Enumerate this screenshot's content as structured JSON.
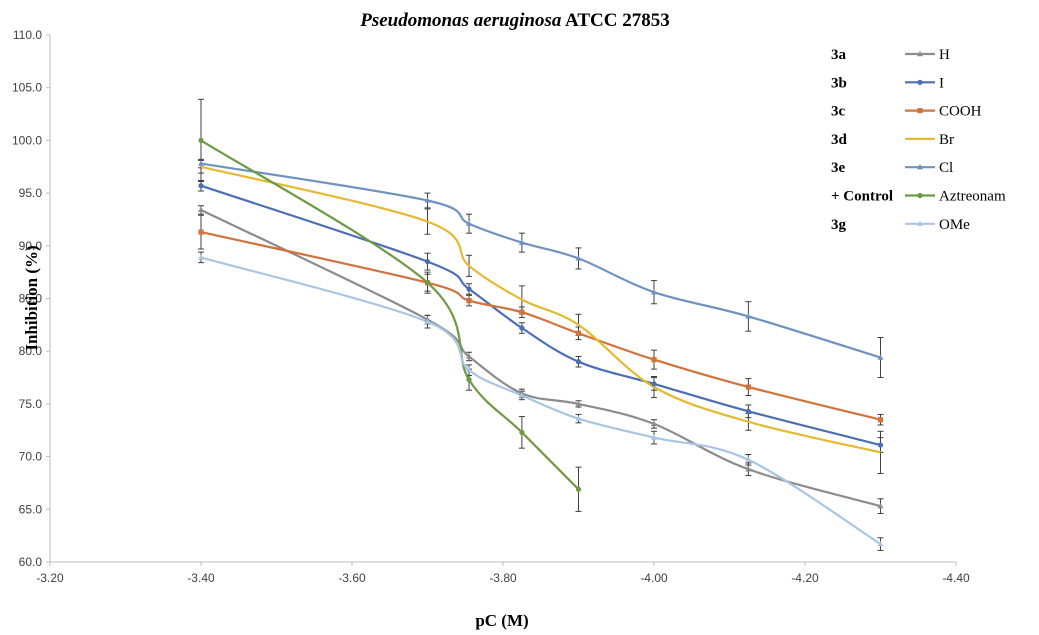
{
  "chart_data": {
    "type": "line",
    "title": {
      "italic": "Pseudomonas aeruginosa",
      "rest": " ATCC 27853"
    },
    "xlabel": "pC (M)",
    "ylabel": "Inhibition (%)",
    "xlim": [
      -3.2,
      -4.4
    ],
    "ylim": [
      60,
      110
    ],
    "x_ticks": [
      "-3.20",
      "-3.40",
      "-3.60",
      "-3.80",
      "-4.00",
      "-4.20",
      "-4.40"
    ],
    "y_ticks": [
      "60.0",
      "65.0",
      "70.0",
      "75.0",
      "80.0",
      "85.0",
      "90.0",
      "95.0",
      "100.0",
      "105.0",
      "110.0"
    ],
    "legend_position": "top-right",
    "series": [
      {
        "id": "3a",
        "name": "H",
        "color": "#8c8c8c",
        "marker": "triangle",
        "x": [
          -3.4,
          -3.7,
          -3.755,
          -3.825,
          -3.9,
          -4.0,
          -4.125,
          -4.3
        ],
        "y": [
          93.4,
          83.0,
          79.5,
          76.0,
          75.0,
          73.1,
          68.8,
          65.3
        ],
        "err": [
          0.4,
          0.4,
          0.4,
          0.4,
          0.3,
          0.4,
          0.6,
          0.7
        ]
      },
      {
        "id": "3b",
        "name": "I",
        "color": "#4a6fb4",
        "marker": "circle",
        "x": [
          -3.4,
          -3.7,
          -3.755,
          -3.825,
          -3.9,
          -4.0,
          -4.125,
          -4.3
        ],
        "y": [
          95.7,
          88.5,
          85.9,
          82.2,
          79.0,
          76.9,
          74.3,
          71.1
        ],
        "err": [
          0.5,
          0.8,
          0.5,
          0.5,
          0.5,
          0.6,
          0.6,
          0.7
        ]
      },
      {
        "id": "3c",
        "name": "COOH",
        "color": "#d1733a",
        "marker": "square",
        "x": [
          -3.4,
          -3.7,
          -3.755,
          -3.825,
          -3.9,
          -4.0,
          -4.125,
          -4.3
        ],
        "y": [
          91.3,
          86.5,
          84.8,
          83.7,
          81.7,
          79.2,
          76.6,
          73.5
        ],
        "err": [
          1.6,
          0.8,
          0.5,
          0.5,
          0.6,
          0.9,
          0.8,
          0.5
        ]
      },
      {
        "id": "3d",
        "name": "Br",
        "color": "#e5b930",
        "marker": "none",
        "x": [
          -3.4,
          -3.7,
          -3.755,
          -3.825,
          -3.9,
          -4.0,
          -4.125,
          -4.3
        ],
        "y": [
          97.5,
          92.3,
          88.1,
          84.9,
          82.5,
          76.6,
          73.3,
          70.4
        ],
        "err": [
          0.6,
          1.2,
          1.0,
          1.3,
          1.0,
          1.0,
          0.8,
          2.0
        ]
      },
      {
        "id": "3e",
        "name": "Cl",
        "color": "#7092c1",
        "marker": "triangle",
        "x": [
          -3.4,
          -3.7,
          -3.755,
          -3.825,
          -3.9,
          -4.0,
          -4.125,
          -4.3
        ],
        "y": [
          97.8,
          94.3,
          92.1,
          90.3,
          88.8,
          85.6,
          83.3,
          79.4
        ],
        "err": [
          0.4,
          0.7,
          0.9,
          0.9,
          1.0,
          1.1,
          1.4,
          1.9
        ]
      },
      {
        "id": "+ Control",
        "name": "Aztreonam",
        "color": "#6f9a43",
        "marker": "circle",
        "x": [
          -3.4,
          -3.7,
          -3.755,
          -3.825,
          -3.9
        ],
        "y": [
          100.0,
          86.5,
          77.3,
          72.3,
          66.9
        ],
        "err": [
          3.9,
          1.0,
          1.0,
          1.5,
          2.1
        ]
      },
      {
        "id": "3g",
        "name": "OMe",
        "color": "#a9c5e3",
        "marker": "triangle",
        "x": [
          -3.4,
          -3.7,
          -3.755,
          -3.825,
          -3.9,
          -4.0,
          -4.125,
          -4.3
        ],
        "y": [
          88.9,
          82.8,
          78.2,
          75.8,
          73.6,
          71.8,
          69.7,
          61.7
        ],
        "err": [
          0.5,
          0.6,
          0.5,
          0.4,
          0.4,
          0.6,
          0.5,
          0.6
        ]
      }
    ]
  }
}
